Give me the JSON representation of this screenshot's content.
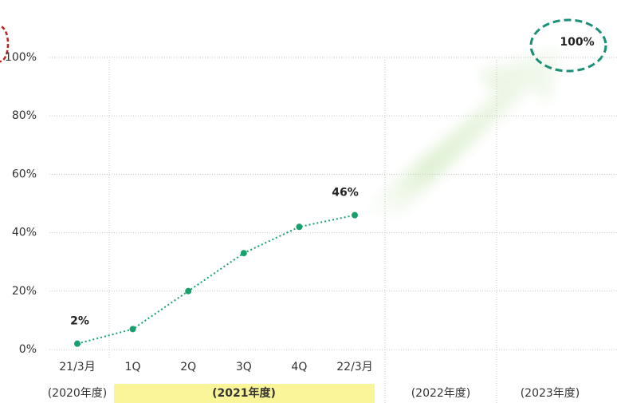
{
  "chart_data": {
    "type": "line",
    "categories": [
      "21/3月",
      "1Q",
      "2Q",
      "3Q",
      "4Q",
      "22/3月"
    ],
    "series": [
      {
        "name": null,
        "color": "#16a06e",
        "values": [
          2,
          7,
          20,
          33,
          42,
          46
        ],
        "value_labels": [
          "2%",
          null,
          null,
          null,
          null,
          "46%"
        ]
      }
    ],
    "ylim": [
      0,
      100
    ],
    "yticks": [
      {
        "value": 0,
        "label": "0%"
      },
      {
        "value": 20,
        "label": "20%"
      },
      {
        "value": 40,
        "label": "40%"
      },
      {
        "value": 60,
        "label": "60%"
      },
      {
        "value": 80,
        "label": "80%"
      },
      {
        "value": 100,
        "label": "100%"
      }
    ],
    "grid": true,
    "fiscal_years": [
      "(2020年度)",
      "(2021年度)",
      "(2022年度)",
      "(2023年度)"
    ],
    "annotation": "100%"
  }
}
